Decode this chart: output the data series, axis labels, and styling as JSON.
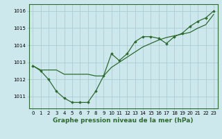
{
  "title": "Graphe pression niveau de la mer (hPa)",
  "background_color": "#cce8ec",
  "grid_color": "#aacdd4",
  "line_color": "#2d6a2d",
  "marker_color": "#2d6a2d",
  "xlim": [
    -0.5,
    23.5
  ],
  "ylim": [
    1010.3,
    1016.4
  ],
  "yticks": [
    1011,
    1012,
    1013,
    1014,
    1015,
    1016
  ],
  "xticks": [
    0,
    1,
    2,
    3,
    4,
    5,
    6,
    7,
    8,
    9,
    10,
    11,
    12,
    13,
    14,
    15,
    16,
    17,
    18,
    19,
    20,
    21,
    22,
    23
  ],
  "series1_x": [
    0,
    1,
    2,
    3,
    4,
    5,
    6,
    7,
    8,
    9,
    10,
    11,
    12,
    13,
    14,
    15,
    16,
    17,
    18,
    19,
    20,
    21,
    22,
    23
  ],
  "series1_y": [
    1012.8,
    1012.5,
    1012.0,
    1011.3,
    1010.9,
    1010.65,
    1010.65,
    1010.65,
    1011.3,
    1012.2,
    1013.5,
    1013.1,
    1013.5,
    1014.2,
    1014.5,
    1014.5,
    1014.4,
    1014.1,
    1014.5,
    1014.7,
    1015.1,
    1015.4,
    1015.6,
    1016.0
  ],
  "series2_x": [
    0,
    1,
    2,
    3,
    4,
    5,
    6,
    7,
    8,
    9,
    10,
    11,
    12,
    13,
    14,
    15,
    16,
    17,
    18,
    19,
    20,
    21,
    22,
    23
  ],
  "series2_y": [
    1012.8,
    1012.55,
    1012.55,
    1012.55,
    1012.3,
    1012.3,
    1012.3,
    1012.3,
    1012.2,
    1012.2,
    1012.7,
    1013.0,
    1013.3,
    1013.6,
    1013.9,
    1014.1,
    1014.3,
    1014.45,
    1014.55,
    1014.65,
    1014.75,
    1015.0,
    1015.2,
    1015.8
  ],
  "title_fontsize": 6.5,
  "tick_fontsize": 5.0
}
